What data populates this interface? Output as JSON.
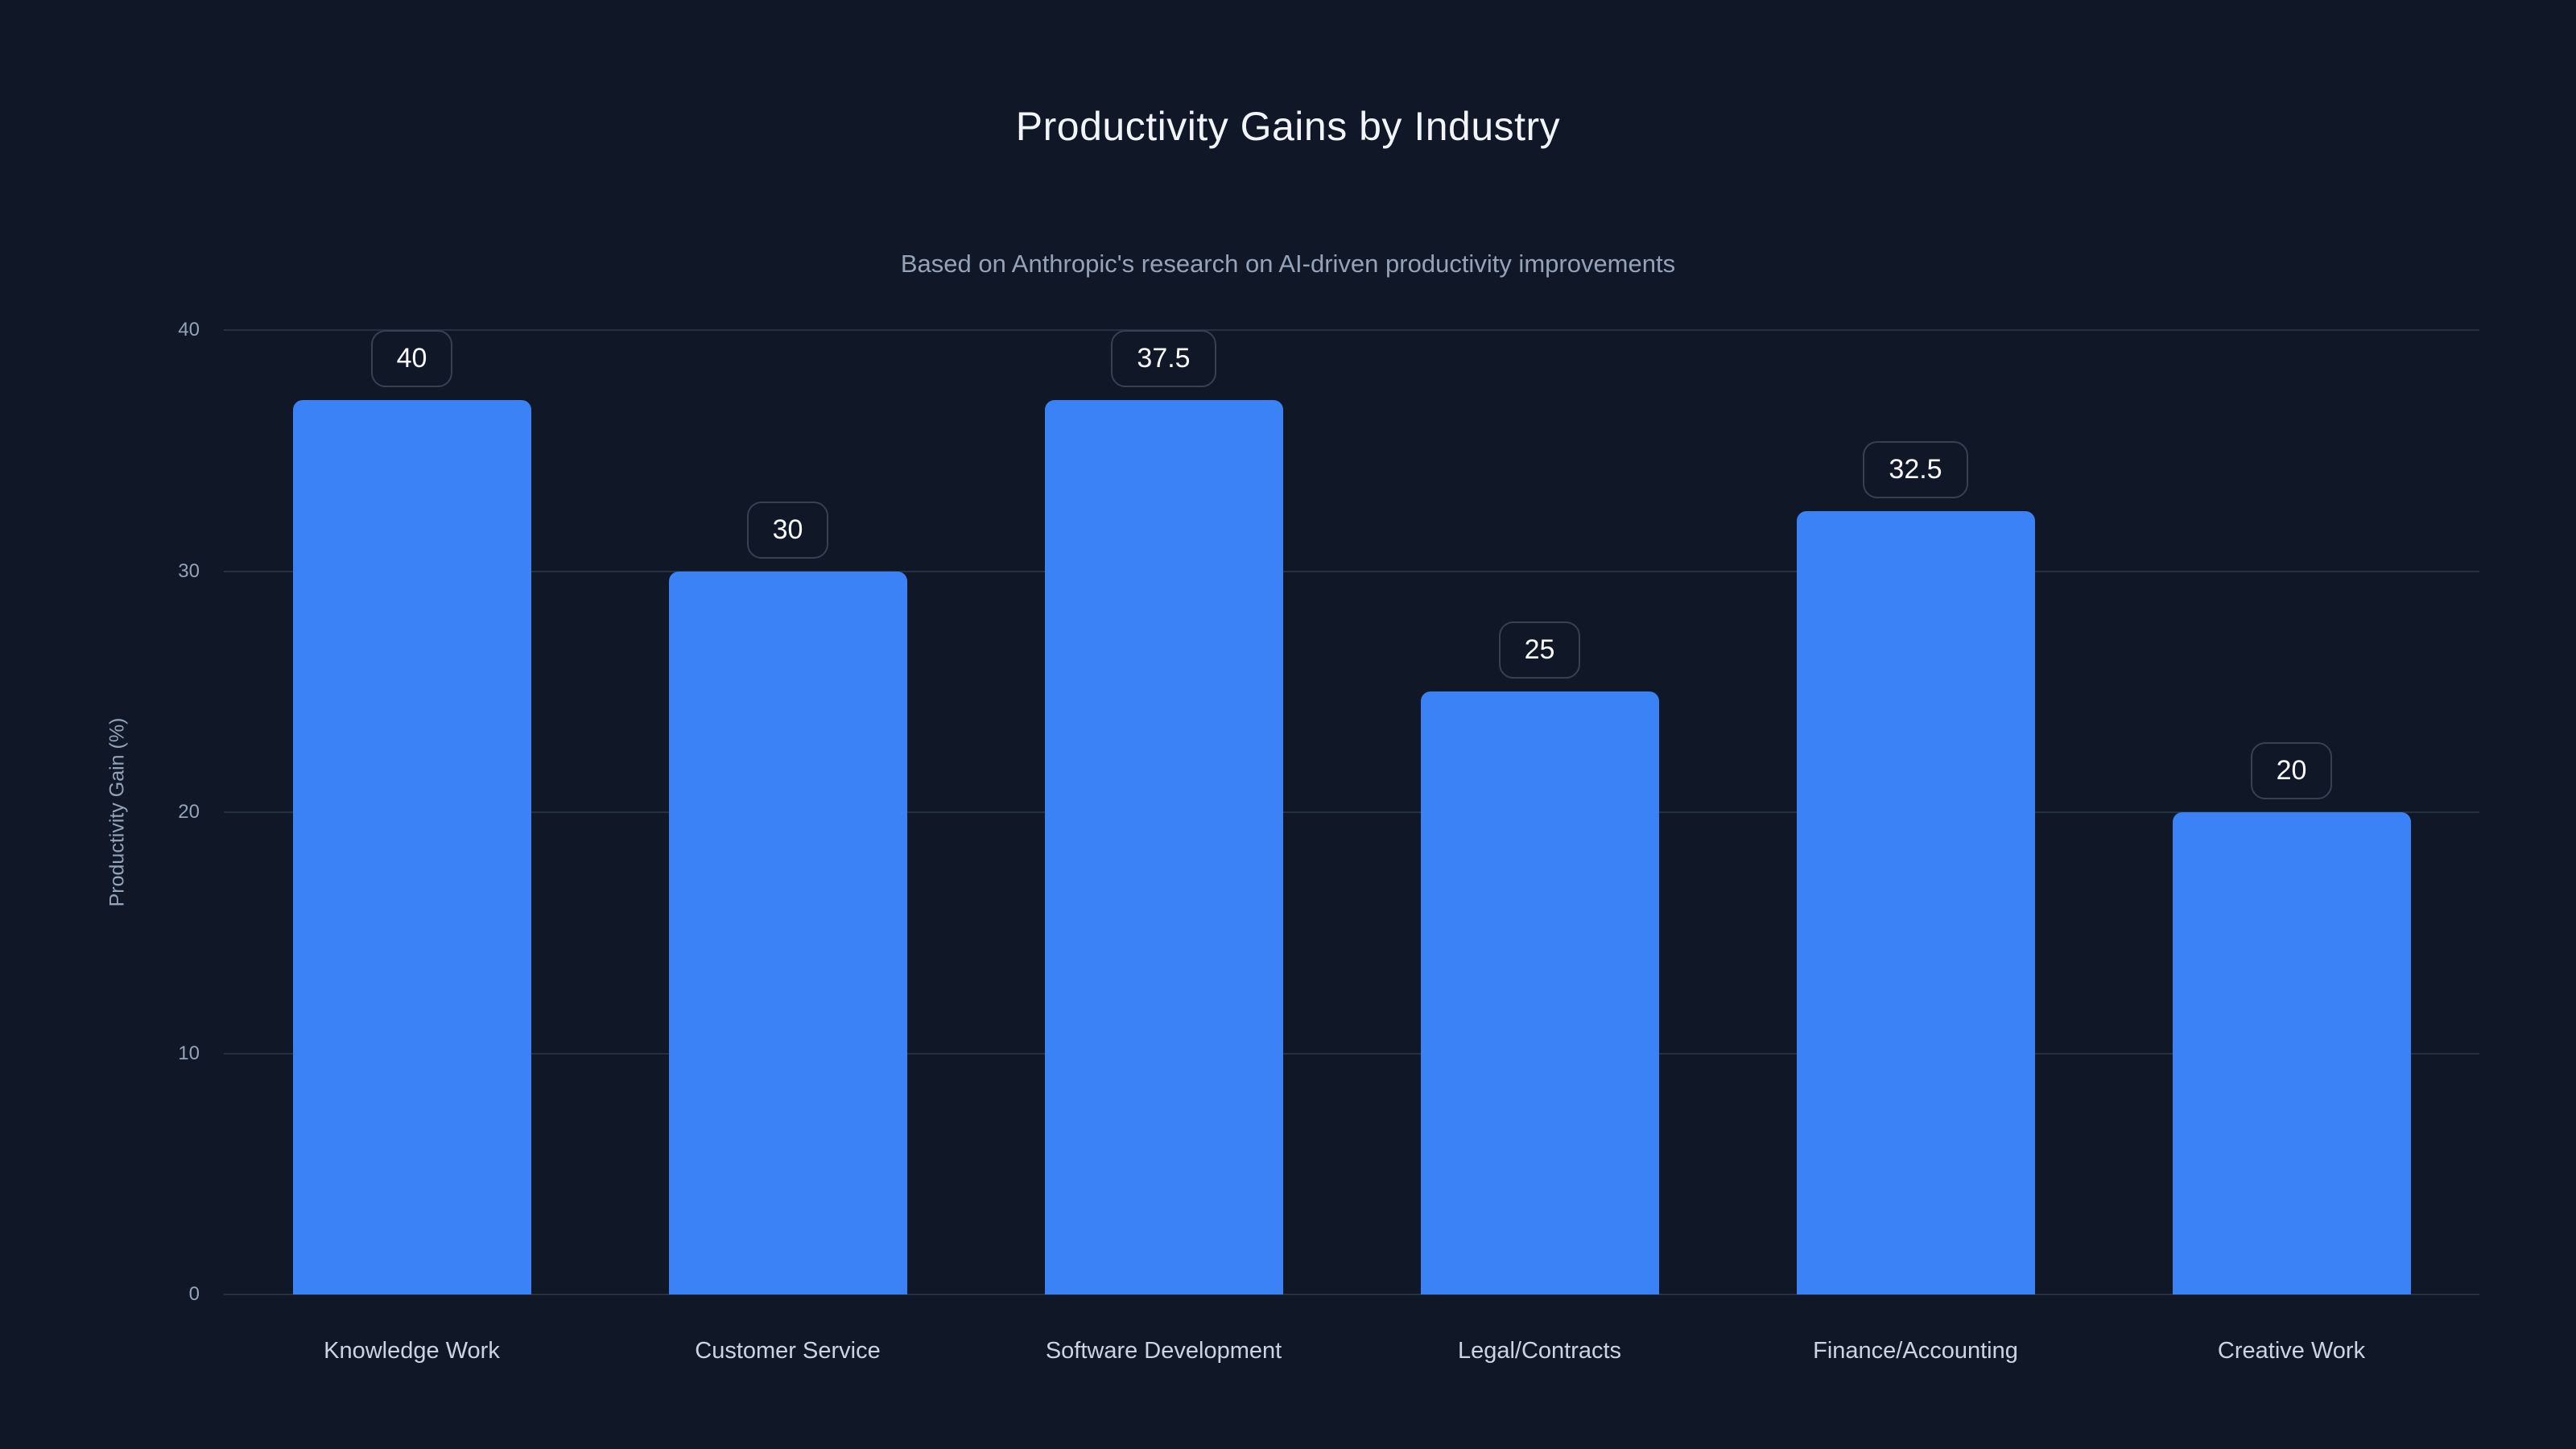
{
  "header": {
    "title": "Productivity Gains by Industry",
    "subtitle": "Based on Anthropic's research on AI-driven productivity improvements"
  },
  "chart_data": {
    "type": "bar",
    "title": "Productivity Gains by Industry",
    "subtitle": "Based on Anthropic's research on AI-driven productivity improvements",
    "categories": [
      "Knowledge Work",
      "Customer Service",
      "Software Development",
      "Legal/Contracts",
      "Finance/Accounting",
      "Creative Work"
    ],
    "values": [
      40,
      30,
      37.5,
      25,
      32.5,
      20
    ],
    "bar_labels": [
      "40",
      "30",
      "37.5",
      "25",
      "32.5",
      "20"
    ],
    "xlabel": "",
    "ylabel": "Productivity Gain (%)",
    "ylim": [
      0,
      40
    ],
    "yticks": [
      0,
      10,
      20,
      30,
      40
    ],
    "grid": "horizontal",
    "legend": "none",
    "colors": {
      "background": "#101828",
      "bar": "#3b82f6",
      "gridline": "#243140",
      "title_text": "#f1f5f9",
      "subtitle_text": "#94a3b8",
      "axis_tick_text": "#94a3b8",
      "category_text": "#cbd5e1",
      "value_pill_border": "#374152",
      "value_pill_text": "#f8fafc"
    }
  }
}
